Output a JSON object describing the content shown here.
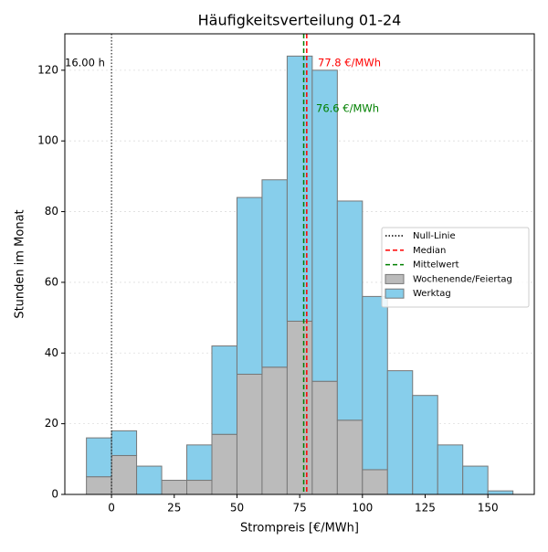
{
  "chart_data": {
    "type": "histogram",
    "title": "Häufigkeitsverteilung 01-24",
    "xlabel": "Strompreis [€/MWh]",
    "ylabel": "Stunden im Monat",
    "bins": [
      -10,
      0,
      10,
      20,
      30,
      40,
      50,
      60,
      70,
      80,
      90,
      100,
      110,
      120,
      130,
      140,
      150,
      160
    ],
    "stacked": true,
    "series": [
      {
        "name": "Wochenende/Feiertag",
        "color": "#bbbbbb",
        "values": [
          5,
          11,
          0,
          4,
          4,
          17,
          34,
          36,
          49,
          32,
          21,
          7,
          0,
          0,
          0,
          0,
          0
        ]
      },
      {
        "name": "Werktag",
        "color": "#87ceeb",
        "values": [
          11,
          7,
          8,
          0,
          10,
          25,
          50,
          53,
          75,
          88,
          62,
          49,
          35,
          28,
          14,
          8,
          1
        ]
      }
    ],
    "reference_lines": [
      {
        "name": "Null-Linie",
        "value": 0,
        "color": "#000000",
        "style": "dotted"
      },
      {
        "name": "Median",
        "value": 77.8,
        "color": "#ff0000",
        "style": "dashed"
      },
      {
        "name": "Mittelwert",
        "value": 76.6,
        "color": "#008000",
        "style": "dashed"
      }
    ],
    "annotations": [
      {
        "text": "16.00 h",
        "color": "#000000"
      },
      {
        "text": "77.8 €/MWh",
        "color": "#ff0000"
      },
      {
        "text": "76.6 €/MWh",
        "color": "#008000"
      }
    ],
    "xlim": [
      -18.6,
      168.5
    ],
    "ylim": [
      0,
      130.3
    ],
    "xticks": [
      0,
      25,
      50,
      75,
      100,
      125,
      150
    ],
    "yticks": [
      0,
      20,
      40,
      60,
      80,
      100,
      120
    ],
    "grid": true,
    "legend": "right"
  }
}
